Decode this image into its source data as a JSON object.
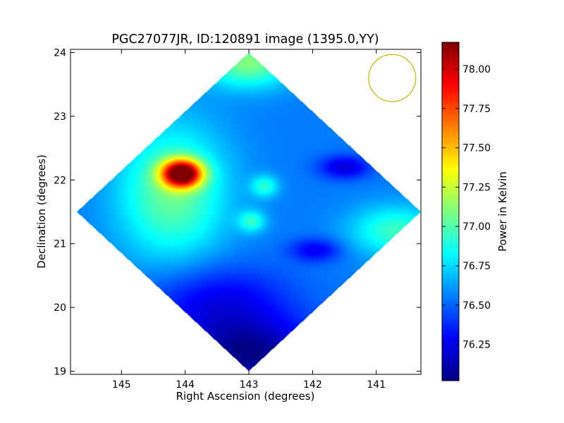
{
  "chart_data": {
    "type": "heatmap",
    "title": "PGC27077JR, ID:120891 image (1395.0,YY)",
    "xlabel": "Right Ascension (degrees)",
    "ylabel": "Declination (degrees)",
    "xlim": [
      145.8,
      140.3
    ],
    "ylim": [
      18.95,
      24.05
    ],
    "x_ticks": [
      145,
      144,
      143,
      142,
      141
    ],
    "y_ticks": [
      19,
      20,
      21,
      22,
      23,
      24
    ],
    "x_tick_labels": [
      "145",
      "144",
      "143",
      "142",
      "141"
    ],
    "y_tick_labels": [
      "19",
      "20",
      "21",
      "22",
      "23",
      "24"
    ],
    "colorbar": {
      "label": "Power in Kelvin",
      "range": [
        76.02,
        78.17
      ],
      "ticks": [
        76.25,
        76.5,
        76.75,
        77.0,
        77.25,
        77.5,
        77.75,
        78.0
      ],
      "tick_labels": [
        "76.25",
        "76.50",
        "76.75",
        "77.00",
        "77.25",
        "77.50",
        "77.75",
        "78.00"
      ],
      "colormap": "jet"
    },
    "footprint": {
      "shape": "diamond",
      "center": [
        143.0,
        21.5
      ],
      "corners": [
        [
          143.0,
          24.0
        ],
        [
          140.3,
          21.5
        ],
        [
          143.0,
          19.0
        ],
        [
          145.7,
          21.5
        ]
      ],
      "background_value": 76.55
    },
    "features": [
      {
        "kind": "hot-spot",
        "ra": 144.05,
        "dec": 22.1,
        "value": 78.15
      },
      {
        "kind": "warm-region",
        "ra": 144.2,
        "dec": 21.8,
        "value": 77.05
      },
      {
        "kind": "warm-edge",
        "ra": 143.0,
        "dec": 23.85,
        "value": 77.1
      },
      {
        "kind": "warm-edge",
        "ra": 140.7,
        "dec": 21.2,
        "value": 76.95
      },
      {
        "kind": "warm-spot",
        "ra": 142.75,
        "dec": 21.9,
        "value": 76.9
      },
      {
        "kind": "warm-spot",
        "ra": 142.95,
        "dec": 21.35,
        "value": 76.9
      },
      {
        "kind": "cold-spot",
        "ra": 141.5,
        "dec": 22.2,
        "value": 76.2
      },
      {
        "kind": "cold-spot",
        "ra": 141.95,
        "dec": 20.9,
        "value": 76.25
      },
      {
        "kind": "cold-region",
        "ra": 143.0,
        "dec": 19.25,
        "value": 76.05
      },
      {
        "kind": "cold-region",
        "ra": 143.5,
        "dec": 20.1,
        "value": 76.25
      }
    ],
    "beam": {
      "shape": "circle",
      "color": "#bfbf00",
      "ra": 140.75,
      "dec": 23.6,
      "radius_deg": 0.37
    },
    "grid": false,
    "legend": "none"
  }
}
